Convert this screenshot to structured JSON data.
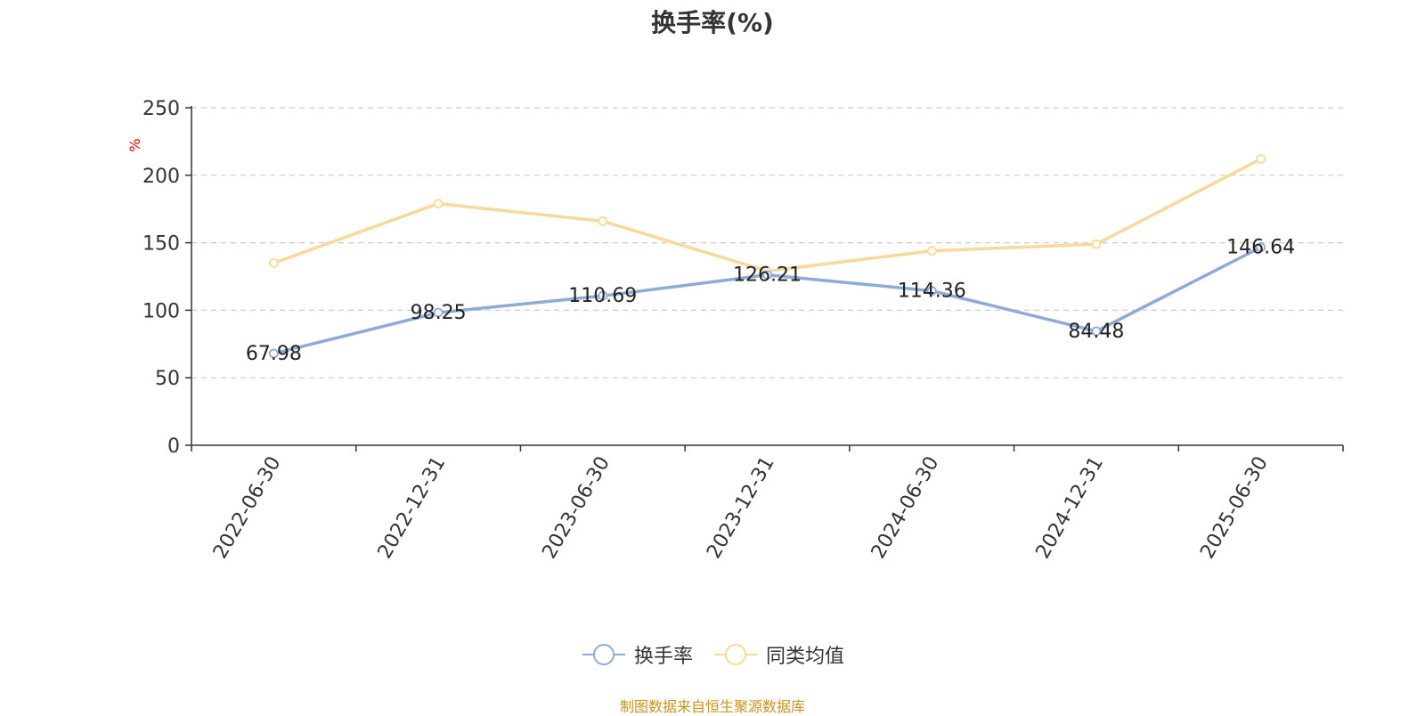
{
  "chart_data": {
    "type": "line",
    "title": "换手率(%)",
    "ylabel": "%",
    "xlabel": "",
    "categories": [
      "2022-06-30",
      "2022-12-31",
      "2023-06-30",
      "2023-12-31",
      "2024-06-30",
      "2024-12-31",
      "2025-06-30"
    ],
    "ylim": [
      0,
      250
    ],
    "yticks": [
      "0",
      "50",
      "100",
      "150",
      "200",
      "250"
    ],
    "grid": true,
    "legend_position": "bottom",
    "series": [
      {
        "name": "换手率",
        "color": "#8eabd6",
        "values": [
          67.98,
          98.25,
          110.69,
          126.21,
          114.36,
          84.48,
          146.64
        ],
        "labels": [
          "67.98",
          "98.25",
          "110.69",
          "126.21",
          "114.36",
          "84.48",
          "146.64"
        ]
      },
      {
        "name": "同类均值",
        "color": "#f9d99a",
        "values": [
          135,
          179,
          166,
          129,
          144,
          149,
          212
        ]
      }
    ]
  },
  "source_note": "制图数据来自恒生聚源数据库",
  "colors": {
    "axis": "#333333",
    "grid": "#cccccc",
    "ylabel": "#e60000"
  }
}
